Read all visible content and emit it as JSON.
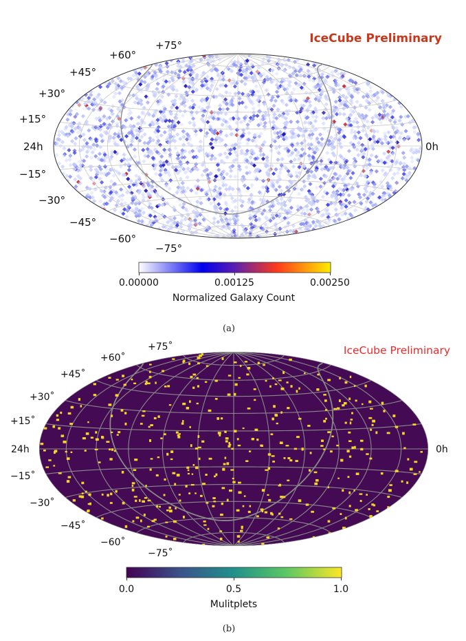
{
  "panel_a": {
    "title": "IceCube Preliminary",
    "title_color": "#c8381c",
    "dec_labels": [
      "+75°",
      "+60°",
      "+45°",
      "+30°",
      "+15°",
      "−15°",
      "−30°",
      "−45°",
      "−60°",
      "−75°"
    ],
    "ra_left": "24h",
    "ra_right": "0h",
    "colorbar": {
      "label": "Normalized Galaxy Count",
      "ticks": [
        "0.00000",
        "0.00125",
        "0.00250"
      ],
      "colors": [
        "#ffffff",
        "#0000ee",
        "#ff3a1a",
        "#ffee00"
      ]
    },
    "caption": "(a)"
  },
  "panel_b": {
    "title": "IceCube Preliminary",
    "title_color": "#ee2a2a",
    "dec_labels": [
      "+75˚",
      "+60˚",
      "+45˚",
      "+30˚",
      "+15˚",
      "−15˚",
      "−30˚",
      "−45˚",
      "−60˚",
      "−75˚"
    ],
    "ra_left": "24h",
    "ra_right": "0h",
    "background_color": "#440b54",
    "spot_color": "#f5d52a",
    "colorbar": {
      "label": "Mulitplets",
      "ticks": [
        "0.0",
        "0.5",
        "1.0"
      ],
      "colors": [
        "#440154",
        "#3b528b",
        "#21918c",
        "#5ec962",
        "#fde725"
      ]
    },
    "caption": "(b)"
  }
}
